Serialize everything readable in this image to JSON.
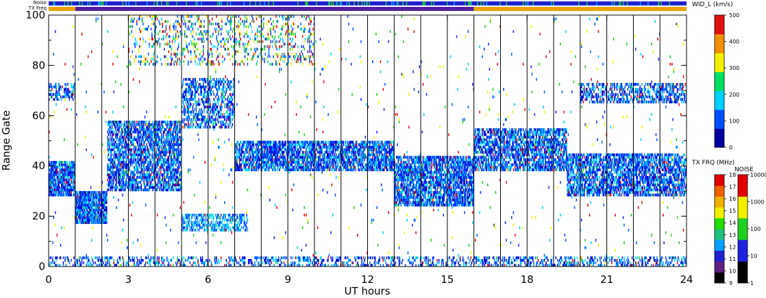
{
  "chart_data": {
    "type": "heatmap",
    "xlabel": "UT hours",
    "ylabel": "Range Gate",
    "xlim": [
      0,
      24
    ],
    "ylim": [
      0,
      100
    ],
    "x_ticks": [
      "0",
      "3",
      "6",
      "9",
      "12",
      "15",
      "18",
      "21",
      "24"
    ],
    "y_ticks": [
      "0",
      "20",
      "40",
      "60",
      "80",
      "100"
    ],
    "x_tick_values": [
      0,
      3,
      6,
      9,
      12,
      15,
      18,
      21,
      24
    ],
    "y_tick_values": [
      0,
      20,
      40,
      60,
      80,
      100
    ],
    "scan_boundaries": [
      1,
      2,
      3,
      4,
      5,
      6,
      7,
      8,
      9,
      10,
      11,
      12,
      13,
      14,
      15,
      16,
      17,
      18,
      19,
      20,
      21,
      22,
      23
    ],
    "top_strips": {
      "noise_label": "Noise",
      "txfreq_label": "TX Freq",
      "noise_color": "#2020d0",
      "txfreq_segments": [
        {
          "start": 0,
          "end": 1,
          "color": "#f0a000"
        },
        {
          "start": 1,
          "end": 16,
          "color": "#5020a0"
        },
        {
          "start": 16,
          "end": 24,
          "color": "#f0a000"
        }
      ]
    },
    "scatter_bands": [
      {
        "name": "main-band-early",
        "x": [
          0,
          1.0
        ],
        "y": [
          28,
          42
        ],
        "density": 0.85,
        "palette": "blue"
      },
      {
        "name": "dip-band",
        "x": [
          1.0,
          2.2
        ],
        "y": [
          17,
          30
        ],
        "density": 0.9,
        "palette": "blue"
      },
      {
        "name": "rising-band",
        "x": [
          2.2,
          5.0
        ],
        "y": [
          30,
          58
        ],
        "density": 0.7,
        "palette": "blue"
      },
      {
        "name": "upper-arc",
        "x": [
          5.0,
          7.0
        ],
        "y": [
          55,
          75
        ],
        "density": 0.5,
        "palette": "blue"
      },
      {
        "name": "mid-band",
        "x": [
          7.0,
          13.0
        ],
        "y": [
          38,
          50
        ],
        "density": 0.75,
        "palette": "blue"
      },
      {
        "name": "evening-descent",
        "x": [
          13.0,
          16.0
        ],
        "y": [
          24,
          44
        ],
        "density": 0.75,
        "palette": "blue"
      },
      {
        "name": "late-band",
        "x": [
          16.0,
          19.5
        ],
        "y": [
          38,
          55
        ],
        "density": 0.7,
        "palette": "blue"
      },
      {
        "name": "night-band",
        "x": [
          19.5,
          24.0
        ],
        "y": [
          28,
          45
        ],
        "density": 0.7,
        "palette": "blue"
      },
      {
        "name": "high-gates-late",
        "x": [
          20.0,
          24.0
        ],
        "y": [
          65,
          73
        ],
        "density": 0.5,
        "palette": "blue"
      },
      {
        "name": "high-gates-early",
        "x": [
          0,
          1.0
        ],
        "y": [
          66,
          73
        ],
        "density": 0.5,
        "palette": "blue"
      },
      {
        "name": "low-echoes-mid",
        "x": [
          5.0,
          7.5
        ],
        "y": [
          14,
          21
        ],
        "density": 0.55,
        "palette": "cyan"
      },
      {
        "name": "ground-scatter",
        "x": [
          0,
          24
        ],
        "y": [
          0,
          4
        ],
        "density": 0.35,
        "palette": "blue"
      },
      {
        "name": "upper-noise",
        "x": [
          3.0,
          10.0
        ],
        "y": [
          80,
          100
        ],
        "density": 0.2,
        "palette": "mixed"
      },
      {
        "name": "diffuse-noise",
        "x": [
          0,
          24
        ],
        "y": [
          0,
          100
        ],
        "density": 0.012,
        "palette": "mixed"
      }
    ],
    "colorbars": [
      {
        "title": "WID_L (km/s)",
        "ticks": [
          "0",
          "100",
          "200",
          "300",
          "400",
          "500"
        ],
        "colors": [
          "#0000a0",
          "#0050ff",
          "#00d0ff",
          "#00e060",
          "#f0f000",
          "#f09000",
          "#e01010"
        ]
      },
      {
        "title": "TX FRQ (MHz)",
        "ticks": [
          "9",
          "10",
          "11",
          "12",
          "13",
          "14",
          "15",
          "16",
          "17",
          "18"
        ],
        "colors": [
          "#000000",
          "#602080",
          "#2020d0",
          "#00a0ff",
          "#20c080",
          "#20e000",
          "#f0f000",
          "#f0b000",
          "#f06000",
          "#e00000"
        ]
      },
      {
        "title": "NOISE",
        "ticks": [
          "1",
          "10",
          "100",
          "1000",
          "10000"
        ],
        "colors": [
          "#000000",
          "#2020e0",
          "#20d020",
          "#f0f000",
          "#e00000"
        ]
      }
    ]
  }
}
